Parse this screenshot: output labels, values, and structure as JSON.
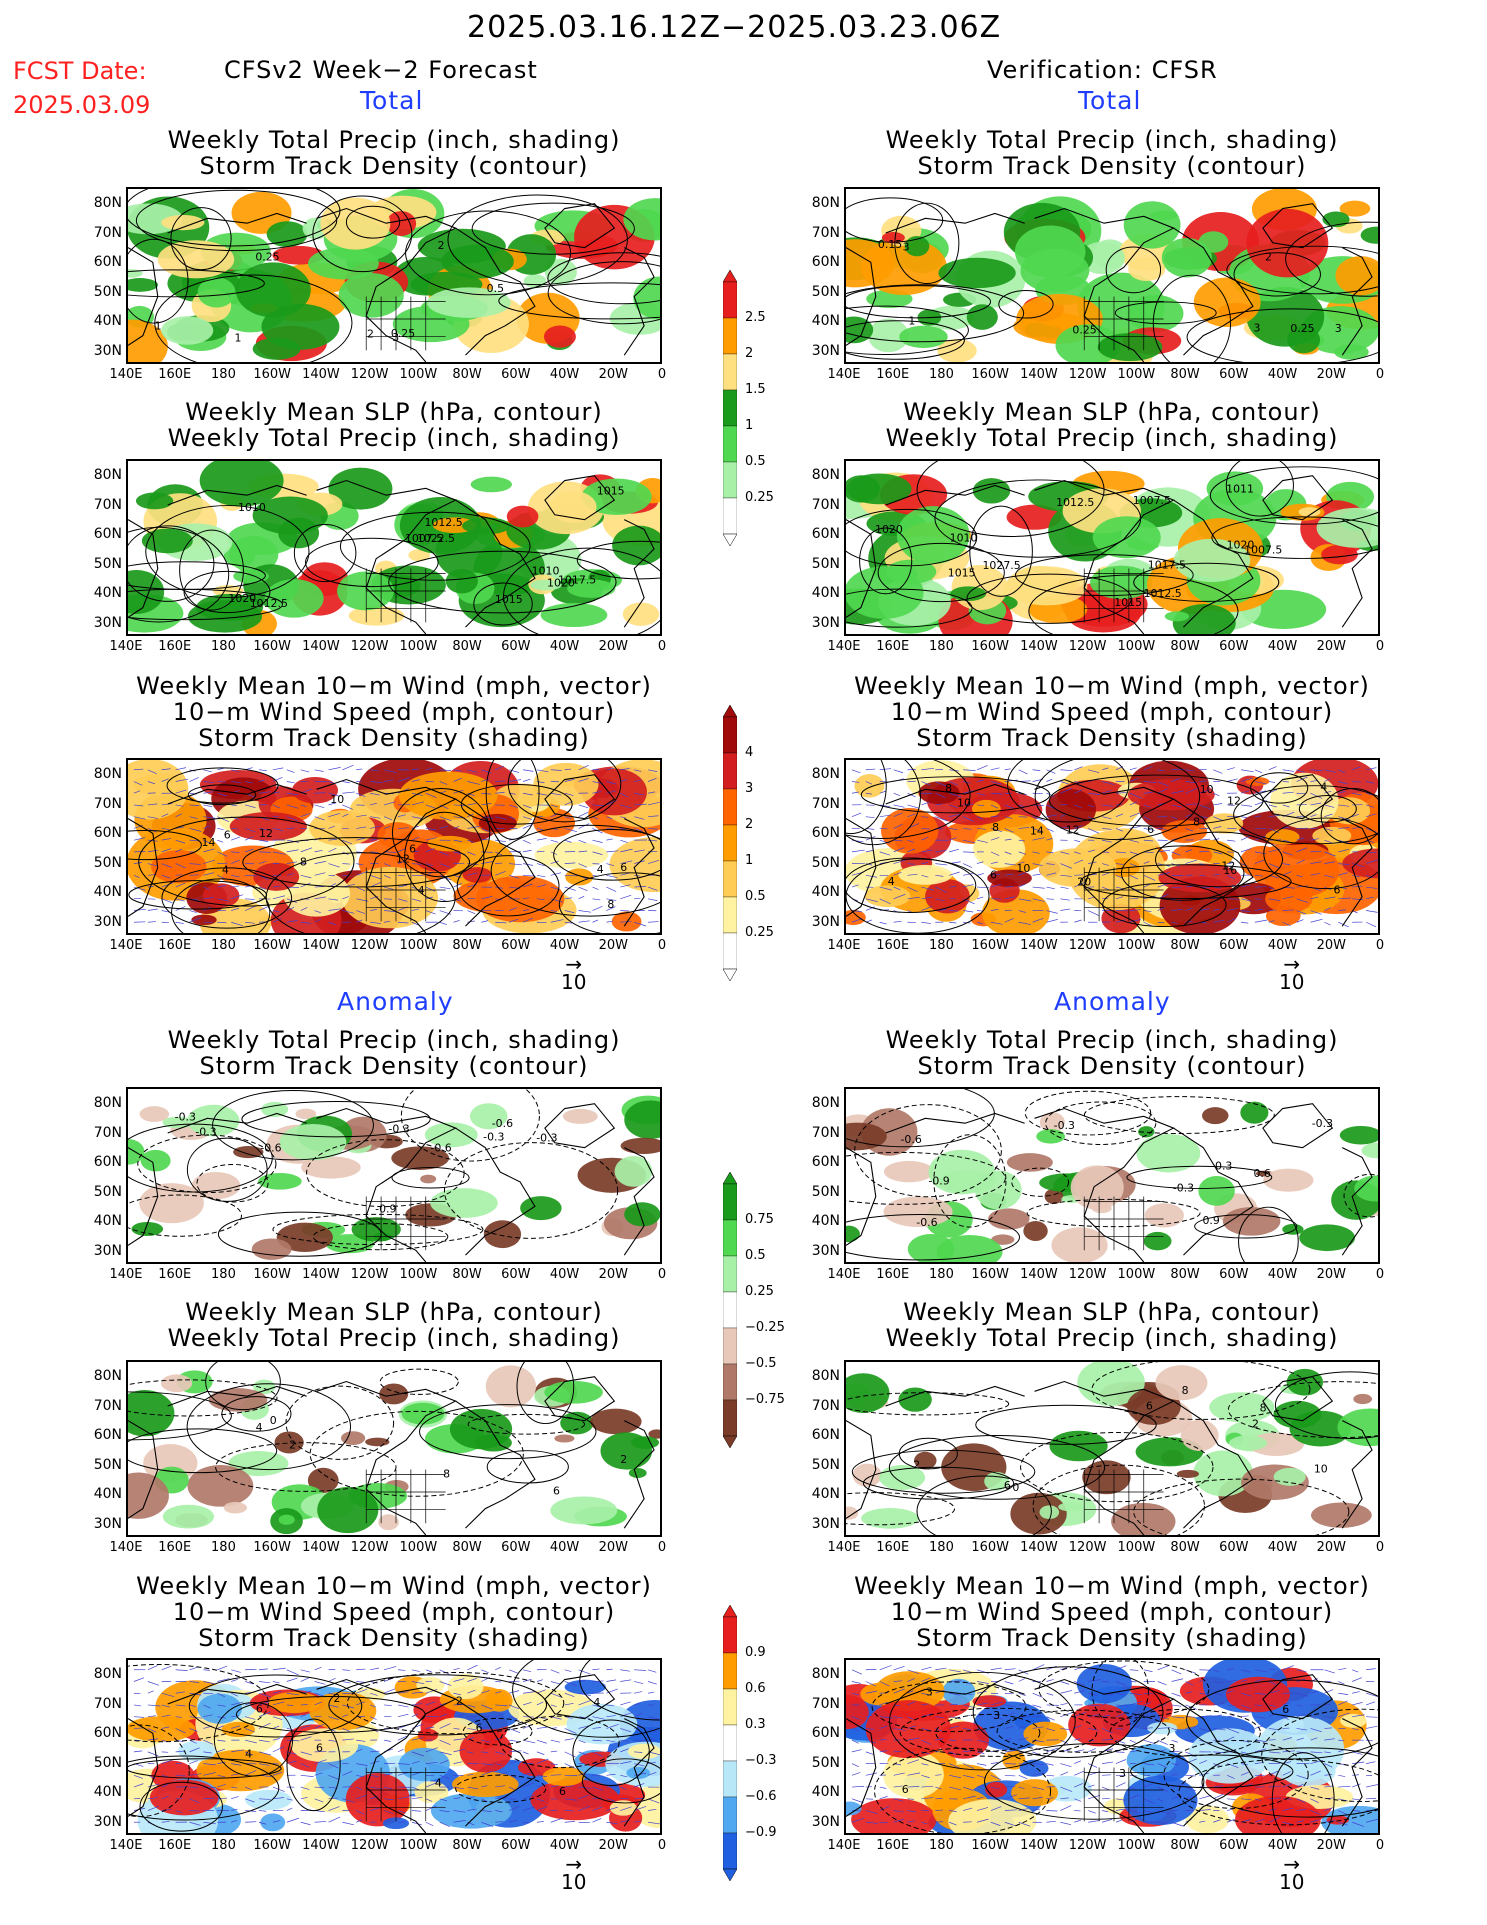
{
  "header": {
    "date_range": "2025.03.16.12Z−2025.03.23.06Z",
    "fcst_label": "FCST Date:",
    "fcst_date": "2025.03.09",
    "left_title": "CFSv2 Week−2 Forecast",
    "right_title": "Verification: CFSR"
  },
  "sections": {
    "total": "Total",
    "anomaly": "Anomaly"
  },
  "panel_titles": {
    "precip_storm": [
      "Weekly Total Precip (inch, shading)",
      "Storm Track Density (contour)"
    ],
    "slp_precip": [
      "Weekly Mean SLP (hPa, contour)",
      "Weekly Total Precip (inch, shading)"
    ],
    "wind": [
      "Weekly Mean 10−m Wind (mph, vector)",
      "10−m Wind Speed (mph, contour)",
      "Storm Track Density (shading)"
    ]
  },
  "axes": {
    "lat_labels": [
      "80N",
      "70N",
      "60N",
      "50N",
      "40N",
      "30N"
    ],
    "lon_labels": [
      "140E",
      "160E",
      "180",
      "160W",
      "140W",
      "120W",
      "100W",
      "80W",
      "60W",
      "40W",
      "20W",
      "0"
    ]
  },
  "vector_ref": "10",
  "colorbars": {
    "precip_total": [
      "2.5",
      "2",
      "1.5",
      "1",
      "0.5",
      "0.25"
    ],
    "storm_total": [
      "4",
      "3",
      "2",
      "1",
      "0.5",
      "0.25"
    ],
    "precip_anom": [
      "0.75",
      "0.5",
      "0.25",
      "−0.25",
      "−0.5",
      "−0.75"
    ],
    "storm_anom": [
      "0.9",
      "0.6",
      "0.3",
      "−0.3",
      "−0.6",
      "−0.9"
    ]
  },
  "contour_labels": {
    "p1l": [
      "3",
      "2",
      "1",
      "0.25",
      "0.5",
      "0.25",
      "2",
      "1"
    ],
    "p1r": [
      "3",
      "0.25",
      "0.15",
      "1",
      "0.25",
      "3",
      "2",
      "3"
    ],
    "p2l": [
      "1007.5",
      "1010",
      "1012.5",
      "1015",
      "1020",
      "1020",
      "1022.5",
      "1017.5",
      "1010",
      "1015",
      "1012.5"
    ],
    "p2r": [
      "1020",
      "1027.5",
      "1017.5",
      "1015",
      "1007.5",
      "1020",
      "1007.5",
      "1011",
      "1012.5",
      "1010",
      "1015",
      "1012.5"
    ],
    "p3l": [
      "4",
      "6",
      "4",
      "10",
      "8",
      "14",
      "12",
      "6",
      "4",
      "8",
      "12",
      "6"
    ],
    "p3r": [
      "4",
      "6",
      "8",
      "4",
      "8",
      "10",
      "16",
      "20",
      "14",
      "12",
      "10",
      "12",
      "10",
      "6",
      "8",
      "12",
      "6"
    ],
    "p4l": [
      "-0.6",
      "-0.3",
      "-0.6",
      "-0.3",
      "-0.3",
      "-0.3",
      "-0.9",
      "-0.6",
      "-0.3"
    ],
    "p4r": [
      "-0.6",
      "-0.3",
      "0.3",
      "-0.3",
      "0.6",
      "-0.3",
      "0.9",
      "-0.9",
      "-0.6"
    ],
    "p5l": [
      "8",
      "6",
      "2",
      "0",
      "4",
      "2"
    ],
    "p5r": [
      "2",
      "6",
      "0",
      "8",
      "10",
      "6",
      "8",
      "2"
    ],
    "p6l": [
      "2",
      "4",
      "6",
      "6",
      "6",
      "4",
      "2",
      "4",
      "6"
    ],
    "p6r": [
      "3",
      "3",
      "6",
      "3",
      "6",
      "3"
    ]
  },
  "colors": {
    "precip_light": "#a8f0a8",
    "precip_mid": "#50d850",
    "precip_dark": "#1a9a1a",
    "precip_yellow": "#ffe080",
    "precip_orange": "#ff9c00",
    "precip_red": "#e61e1e",
    "storm_yellow": "#fff2a0",
    "storm_light_orange": "#ffcc55",
    "storm_orange": "#ff9c00",
    "storm_dark_orange": "#ff6400",
    "storm_red": "#d21e1e",
    "storm_dark_red": "#a00a0a",
    "anom_brown_light": "#e8c8b8",
    "anom_brown_mid": "#b07868",
    "anom_brown_dark": "#7a3c28",
    "anom_blue_light": "#b8e8f8",
    "anom_blue_mid": "#50a8f0",
    "anom_blue_dark": "#2060e0",
    "blue_label": "#1f3dff",
    "red_label": "#ff2020"
  }
}
